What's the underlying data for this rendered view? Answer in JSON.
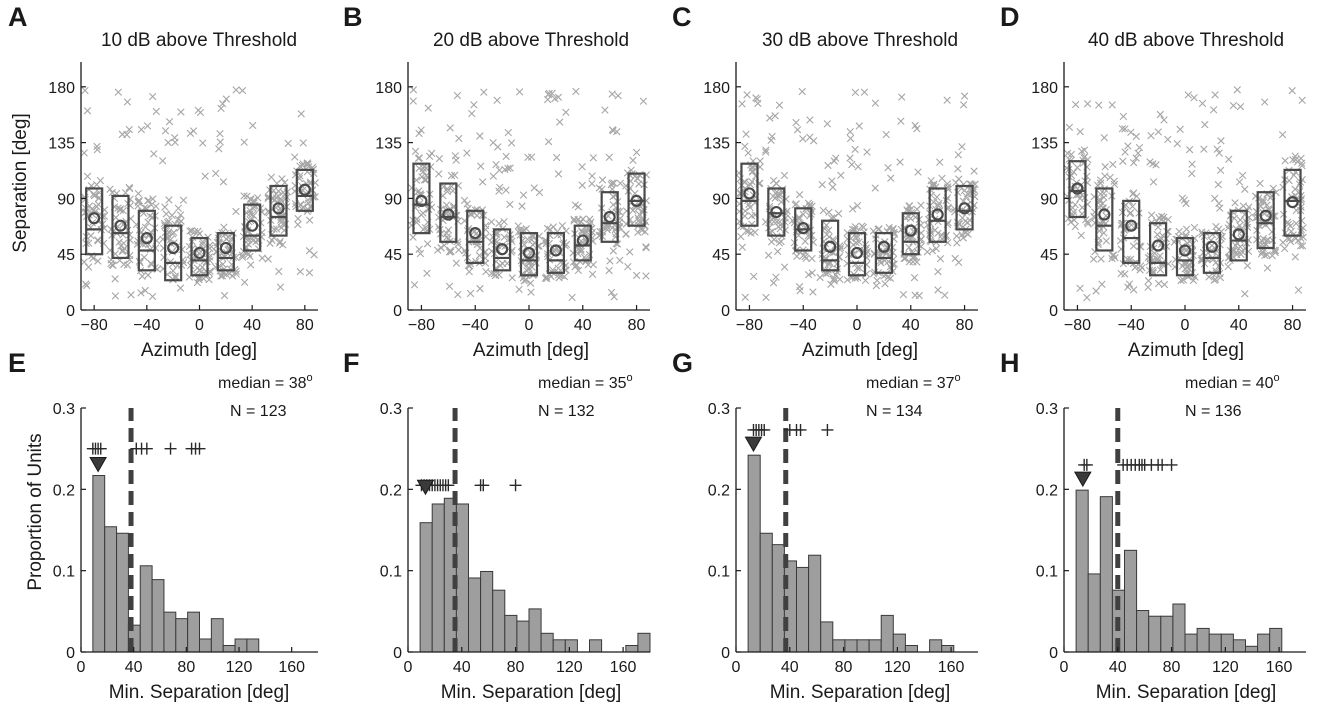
{
  "figure": {
    "top_panels": [
      {
        "letter": "A",
        "title": "10 dB above Threshold"
      },
      {
        "letter": "B",
        "title": "20 dB above Threshold"
      },
      {
        "letter": "C",
        "title": "30 dB above Threshold"
      },
      {
        "letter": "D",
        "title": "40 dB above Threshold"
      }
    ],
    "bottom_panels": [
      {
        "letter": "E",
        "median_text": "median = 38",
        "n_text": "N = 123"
      },
      {
        "letter": "F",
        "median_text": "median = 35",
        "n_text": "N = 132"
      },
      {
        "letter": "G",
        "median_text": "median = 37",
        "n_text": "N = 134"
      },
      {
        "letter": "H",
        "median_text": "median = 40",
        "n_text": "N = 136"
      }
    ],
    "degree_symbol": "o",
    "top_ylabel": "Separation [deg]",
    "top_xlabel": "Azimuth [deg]",
    "bottom_ylabel": "Proportion of Units",
    "bottom_xlabel": "Min. Separation [deg]",
    "top_yticks": [
      "0",
      "45",
      "90",
      "135",
      "180"
    ],
    "top_xticks": [
      "−80",
      "−40",
      "0",
      "40",
      "80"
    ],
    "bottom_yticks": [
      "0",
      "0.1",
      "0.2",
      "0.3"
    ],
    "bottom_xticks": [
      "0",
      "40",
      "80",
      "120",
      "160"
    ]
  },
  "colors": {
    "scatter": "#a6a6a6",
    "box": "#4a4a4a",
    "bar_fill": "#9e9e9e",
    "bar_edge": "#3a3a3a",
    "median_line": "#404040",
    "axis": "#1a1a1a"
  },
  "chart_data": [
    {
      "type": "box",
      "panel": "A",
      "title": "10 dB above Threshold",
      "xlabel": "Azimuth [deg]",
      "ylabel": "Separation [deg]",
      "xlim": [
        -90,
        90
      ],
      "ylim": [
        0,
        200
      ],
      "azimuth": [
        -80,
        -60,
        -40,
        -20,
        0,
        20,
        40,
        60,
        80
      ],
      "box_low": [
        45,
        42,
        32,
        24,
        28,
        32,
        48,
        60,
        80
      ],
      "box_median": [
        65,
        62,
        48,
        38,
        40,
        42,
        60,
        75,
        92
      ],
      "box_high": [
        98,
        92,
        80,
        68,
        58,
        62,
        85,
        100,
        113
      ],
      "mean": [
        74,
        68,
        58,
        50,
        46,
        50,
        68,
        82,
        97
      ]
    },
    {
      "type": "box",
      "panel": "B",
      "title": "20 dB above Threshold",
      "xlabel": "Azimuth [deg]",
      "ylabel": "Separation [deg]",
      "xlim": [
        -90,
        90
      ],
      "ylim": [
        0,
        200
      ],
      "azimuth": [
        -80,
        -60,
        -40,
        -20,
        0,
        20,
        40,
        60,
        80
      ],
      "box_low": [
        62,
        55,
        38,
        32,
        28,
        30,
        40,
        55,
        68
      ],
      "box_median": [
        85,
        75,
        55,
        42,
        40,
        40,
        52,
        70,
        88
      ],
      "box_high": [
        118,
        102,
        80,
        65,
        62,
        62,
        68,
        95,
        110
      ],
      "mean": [
        88,
        77,
        62,
        49,
        46,
        48,
        56,
        75,
        88
      ]
    },
    {
      "type": "box",
      "panel": "C",
      "title": "30 dB above Threshold",
      "xlabel": "Azimuth [deg]",
      "ylabel": "Separation [deg]",
      "xlim": [
        -90,
        90
      ],
      "ylim": [
        0,
        200
      ],
      "azimuth": [
        -80,
        -60,
        -40,
        -20,
        0,
        20,
        40,
        60,
        80
      ],
      "box_low": [
        68,
        60,
        48,
        32,
        28,
        30,
        45,
        55,
        65
      ],
      "box_median": [
        88,
        78,
        65,
        40,
        38,
        42,
        55,
        72,
        80
      ],
      "box_high": [
        118,
        98,
        82,
        72,
        62,
        62,
        78,
        98,
        100
      ],
      "mean": [
        94,
        79,
        66,
        51,
        46,
        51,
        64,
        77,
        82
      ]
    },
    {
      "type": "box",
      "panel": "D",
      "title": "40 dB above Threshold",
      "xlabel": "Azimuth [deg]",
      "ylabel": "Separation [deg]",
      "xlim": [
        -90,
        90
      ],
      "ylim": [
        0,
        200
      ],
      "azimuth": [
        -80,
        -60,
        -40,
        -20,
        0,
        20,
        40,
        60,
        80
      ],
      "box_low": [
        75,
        48,
        38,
        28,
        28,
        30,
        40,
        50,
        60
      ],
      "box_median": [
        96,
        68,
        58,
        38,
        40,
        42,
        56,
        70,
        88
      ],
      "box_high": [
        120,
        98,
        88,
        70,
        58,
        62,
        80,
        95,
        113
      ],
      "mean": [
        98,
        77,
        68,
        52,
        48,
        51,
        61,
        76,
        87
      ]
    },
    {
      "type": "bar",
      "panel": "E",
      "xlabel": "Min. Separation [deg]",
      "ylabel": "Proportion of Units",
      "xlim": [
        0,
        180
      ],
      "ylim": [
        0,
        0.3
      ],
      "bin_width": 9,
      "values": [
        0,
        0.217,
        0.154,
        0.146,
        0.033,
        0.106,
        0.089,
        0.049,
        0.041,
        0.049,
        0.016,
        0.041,
        0.008,
        0.016,
        0.016,
        0,
        0,
        0,
        0,
        0
      ],
      "median": 38,
      "n": 123,
      "mode_marker_x": 13,
      "crosses_y": 0.25,
      "crosses_x": [
        9,
        11,
        13,
        15,
        42,
        46,
        50,
        68,
        84,
        87,
        90
      ]
    },
    {
      "type": "bar",
      "panel": "F",
      "xlabel": "Min. Separation [deg]",
      "ylabel": "Proportion of Units",
      "xlim": [
        0,
        180
      ],
      "ylim": [
        0,
        0.3
      ],
      "bin_width": 9,
      "values": [
        0,
        0.159,
        0.182,
        0.189,
        0.182,
        0.091,
        0.099,
        0.076,
        0.045,
        0.038,
        0.053,
        0.023,
        0.015,
        0.015,
        0,
        0.015,
        0,
        0,
        0.008,
        0.023
      ],
      "median": 35,
      "n": 132,
      "mode_marker_x": 13,
      "crosses_y": 0.205,
      "crosses_x": [
        10,
        12,
        14,
        16,
        18,
        20,
        22,
        24,
        26,
        28,
        30,
        54,
        56,
        80
      ]
    },
    {
      "type": "bar",
      "panel": "G",
      "xlabel": "Min. Separation [deg]",
      "ylabel": "Proportion of Units",
      "xlim": [
        0,
        180
      ],
      "ylim": [
        0,
        0.3
      ],
      "bin_width": 9,
      "values": [
        0,
        0.242,
        0.146,
        0.132,
        0.112,
        0.104,
        0.119,
        0.037,
        0.015,
        0.015,
        0.015,
        0.015,
        0.045,
        0.022,
        0.008,
        0,
        0.015,
        0.008,
        0,
        0
      ],
      "median": 37,
      "n": 134,
      "mode_marker_x": 13,
      "crosses_y": 0.273,
      "crosses_x": [
        13,
        15,
        17,
        19,
        21,
        40,
        45,
        48,
        68
      ]
    },
    {
      "type": "bar",
      "panel": "H",
      "xlabel": "Min. Separation [deg]",
      "ylabel": "Proportion of Units",
      "xlim": [
        0,
        180
      ],
      "ylim": [
        0,
        0.3
      ],
      "bin_width": 9,
      "values": [
        0,
        0.199,
        0.096,
        0.191,
        0.076,
        0.125,
        0.051,
        0.044,
        0.044,
        0.059,
        0.022,
        0.029,
        0.022,
        0.022,
        0.015,
        0.007,
        0.022,
        0.029,
        0,
        0
      ],
      "median": 40,
      "n": 136,
      "mode_marker_x": 14,
      "crosses_y": 0.23,
      "crosses_x": [
        15,
        17,
        44,
        47,
        50,
        53,
        56,
        58,
        60,
        65,
        70,
        73,
        80
      ]
    }
  ]
}
